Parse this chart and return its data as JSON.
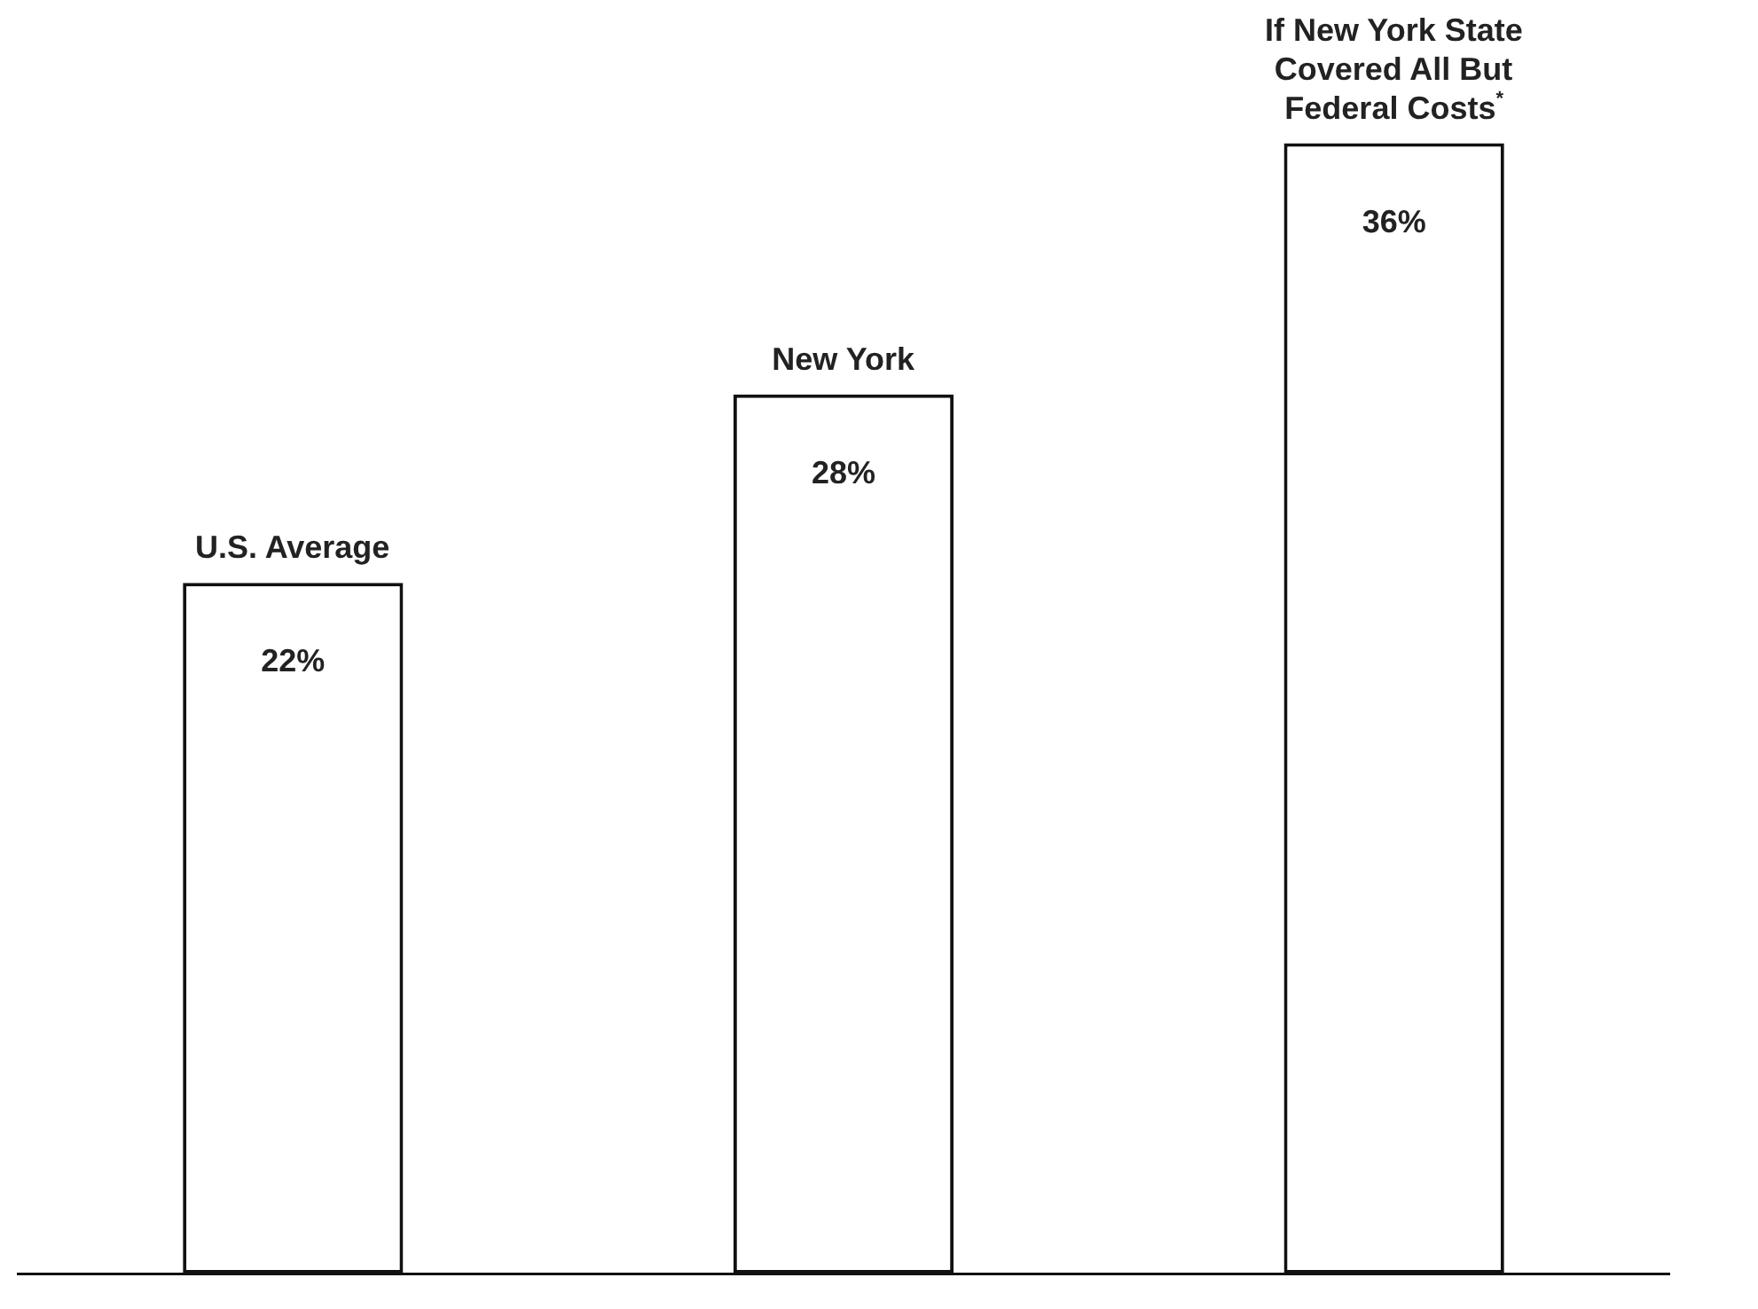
{
  "chart_data": {
    "type": "bar",
    "categories": [
      "U.S. Average",
      "New York",
      "If New York State Covered All But Federal Costs$^{*}$"
    ],
    "values": [
      22,
      28,
      36
    ],
    "color": "#ffffff",
    "data_labels": true,
    "value_labels": [
      "22%",
      "28%",
      "36%"
    ],
    "legend": false,
    "grid": false
  }
}
